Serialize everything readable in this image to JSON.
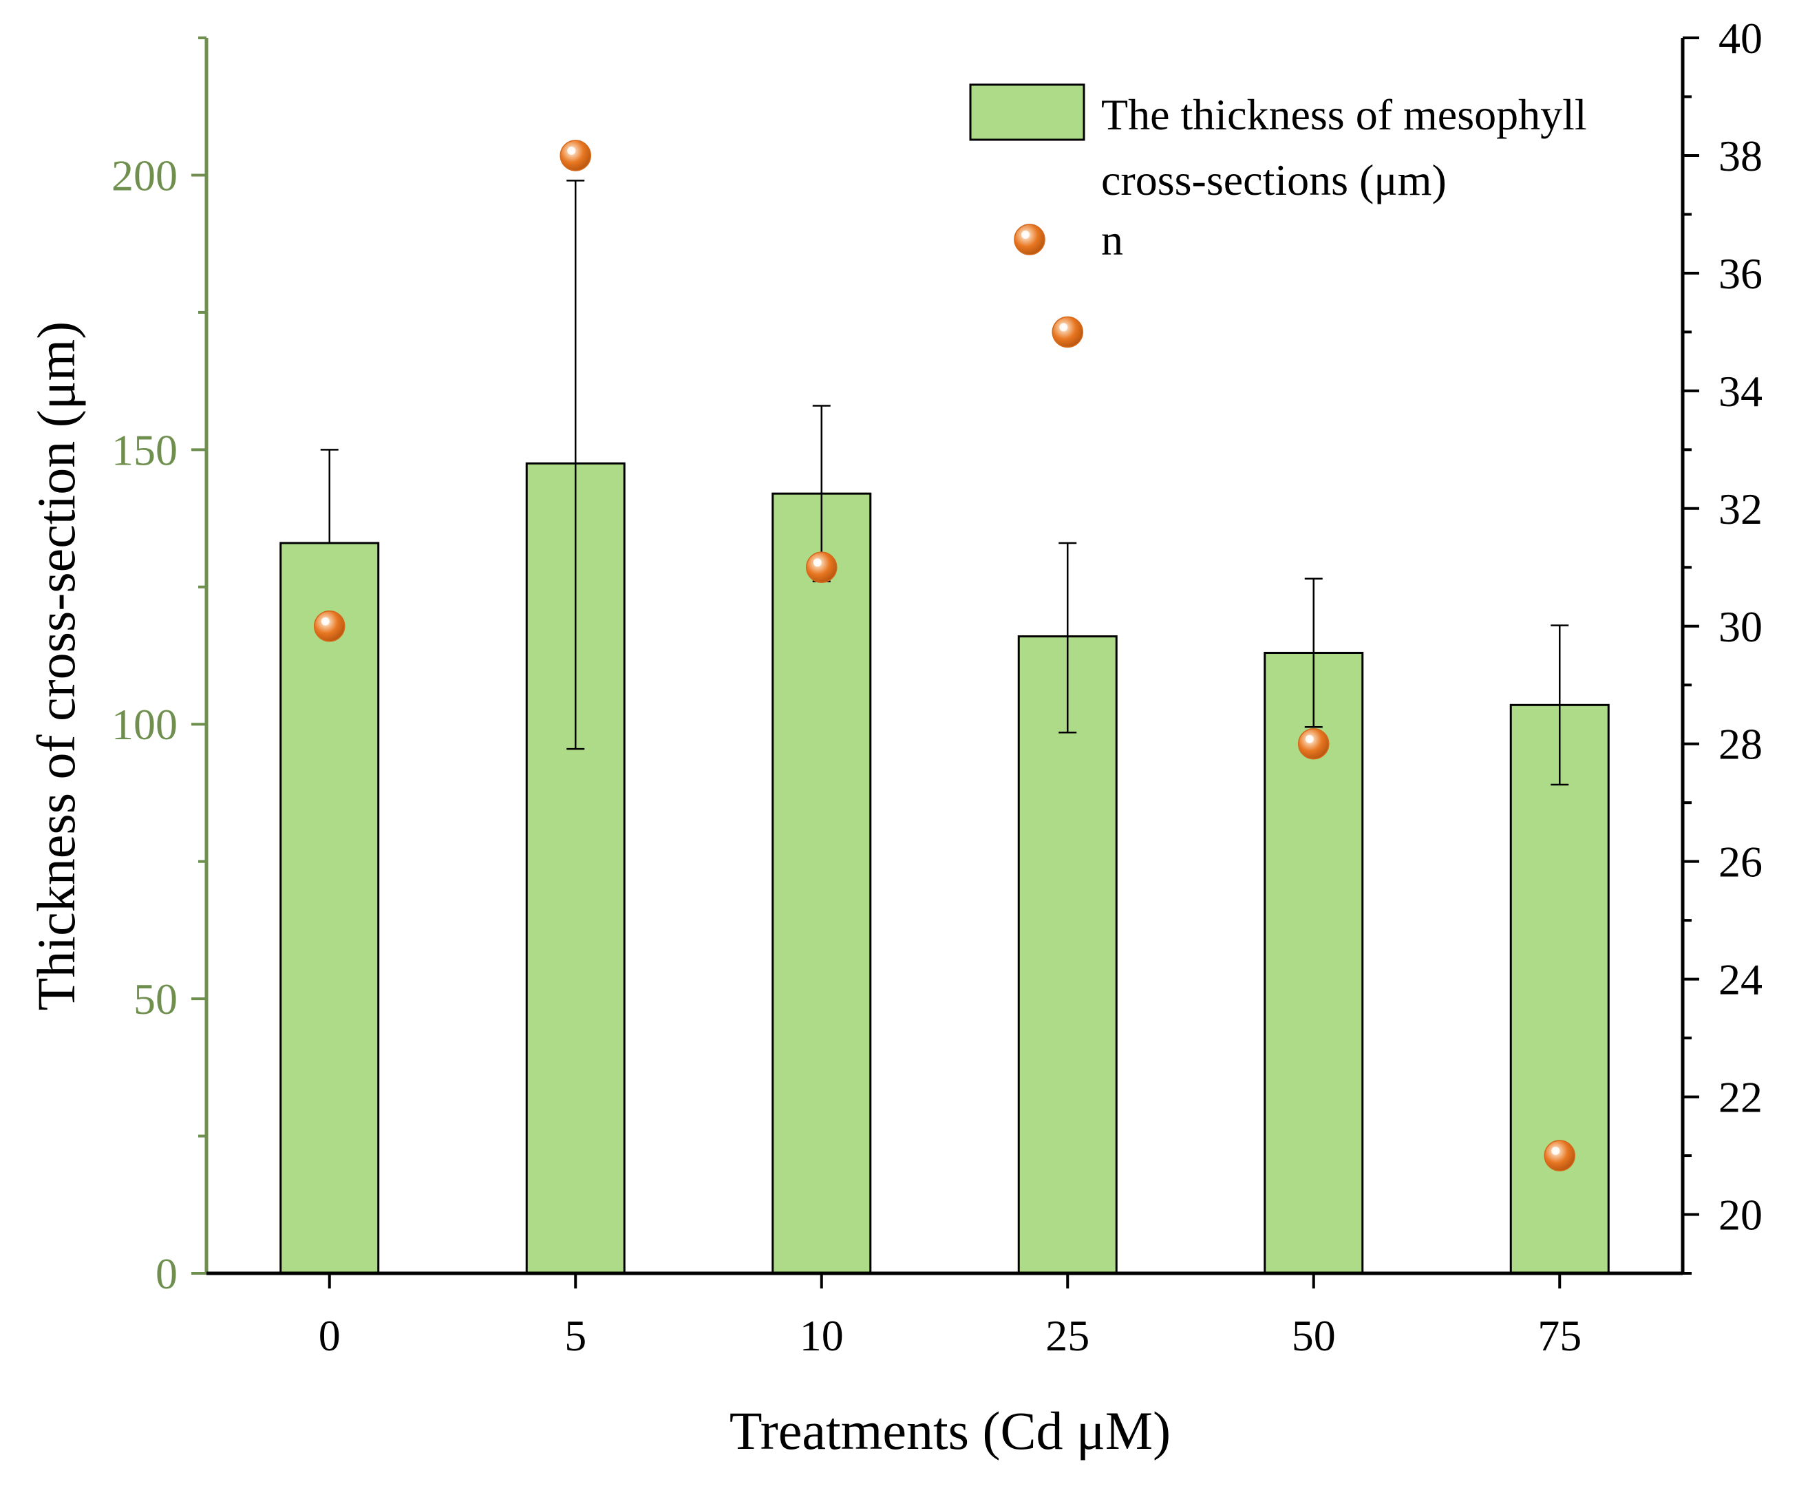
{
  "chart_data": {
    "type": "bar",
    "categories": [
      "0",
      "5",
      "10",
      "25",
      "50",
      "75"
    ],
    "xlabel": "Treatments (Cd μM)",
    "ylabel": "Thickness of cross-section (μm)",
    "ylim": [
      0,
      225
    ],
    "yticks": [
      "0",
      "50",
      "100",
      "150",
      "200"
    ],
    "y2lim": [
      19,
      40
    ],
    "y2ticks": [
      "20",
      "22",
      "24",
      "26",
      "28",
      "30",
      "32",
      "34",
      "36",
      "38",
      "40"
    ],
    "series": [
      {
        "name": "The thickness of mesophyll cross-sections (μm)",
        "legend_lines": [
          "The thickness of mesophyll",
          "cross-sections (μm)"
        ],
        "kind": "bar",
        "axis": "left",
        "color": "#aedb87",
        "values": [
          133,
          147.5,
          142,
          116,
          113,
          103.5
        ],
        "error_upper": [
          150,
          199,
          158,
          133,
          126.5,
          118
        ],
        "error_lower": [
          null,
          95.5,
          126,
          98.5,
          99.5,
          89
        ]
      },
      {
        "name": "n",
        "kind": "scatter",
        "axis": "right",
        "color": "#e87722",
        "values": [
          30,
          38,
          31,
          35,
          28,
          21
        ]
      }
    ],
    "colors": {
      "left_axis": "#6f8f4e",
      "bar_fill": "#aedb87",
      "point": "#e87722"
    }
  }
}
